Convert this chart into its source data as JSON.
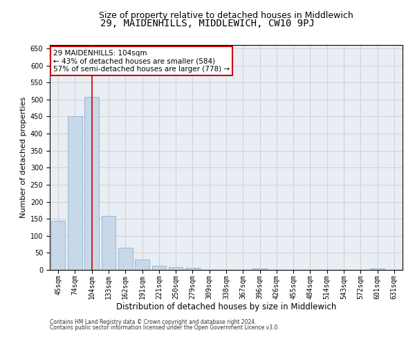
{
  "title": "29, MAIDENHILLS, MIDDLEWICH, CW10 9PJ",
  "subtitle": "Size of property relative to detached houses in Middlewich",
  "xlabel": "Distribution of detached houses by size in Middlewich",
  "ylabel": "Number of detached properties",
  "categories": [
    "45sqm",
    "74sqm",
    "104sqm",
    "133sqm",
    "162sqm",
    "191sqm",
    "221sqm",
    "250sqm",
    "279sqm",
    "309sqm",
    "338sqm",
    "367sqm",
    "396sqm",
    "426sqm",
    "455sqm",
    "484sqm",
    "514sqm",
    "543sqm",
    "572sqm",
    "601sqm",
    "631sqm"
  ],
  "values": [
    145,
    450,
    508,
    158,
    65,
    30,
    13,
    8,
    6,
    0,
    0,
    0,
    5,
    0,
    0,
    0,
    0,
    0,
    0,
    5,
    0
  ],
  "bar_color": "#c8d8e8",
  "bar_edgecolor": "#7aaac8",
  "highlight_index": 2,
  "highlight_color": "#cc0000",
  "annotation_text": "29 MAIDENHILLS: 104sqm\n← 43% of detached houses are smaller (584)\n57% of semi-detached houses are larger (778) →",
  "annotation_box_color": "#ffffff",
  "annotation_box_edgecolor": "#cc0000",
  "ylim": [
    0,
    660
  ],
  "yticks": [
    0,
    50,
    100,
    150,
    200,
    250,
    300,
    350,
    400,
    450,
    500,
    550,
    600,
    650
  ],
  "grid_color": "#cccccc",
  "bg_color": "#e8eef4",
  "footnote1": "Contains HM Land Registry data © Crown copyright and database right 2024.",
  "footnote2": "Contains public sector information licensed under the Open Government Licence v3.0.",
  "title_fontsize": 10,
  "subtitle_fontsize": 9,
  "xlabel_fontsize": 8.5,
  "ylabel_fontsize": 8,
  "tick_fontsize": 7,
  "annotation_fontsize": 7.5,
  "footnote_fontsize": 5.5
}
